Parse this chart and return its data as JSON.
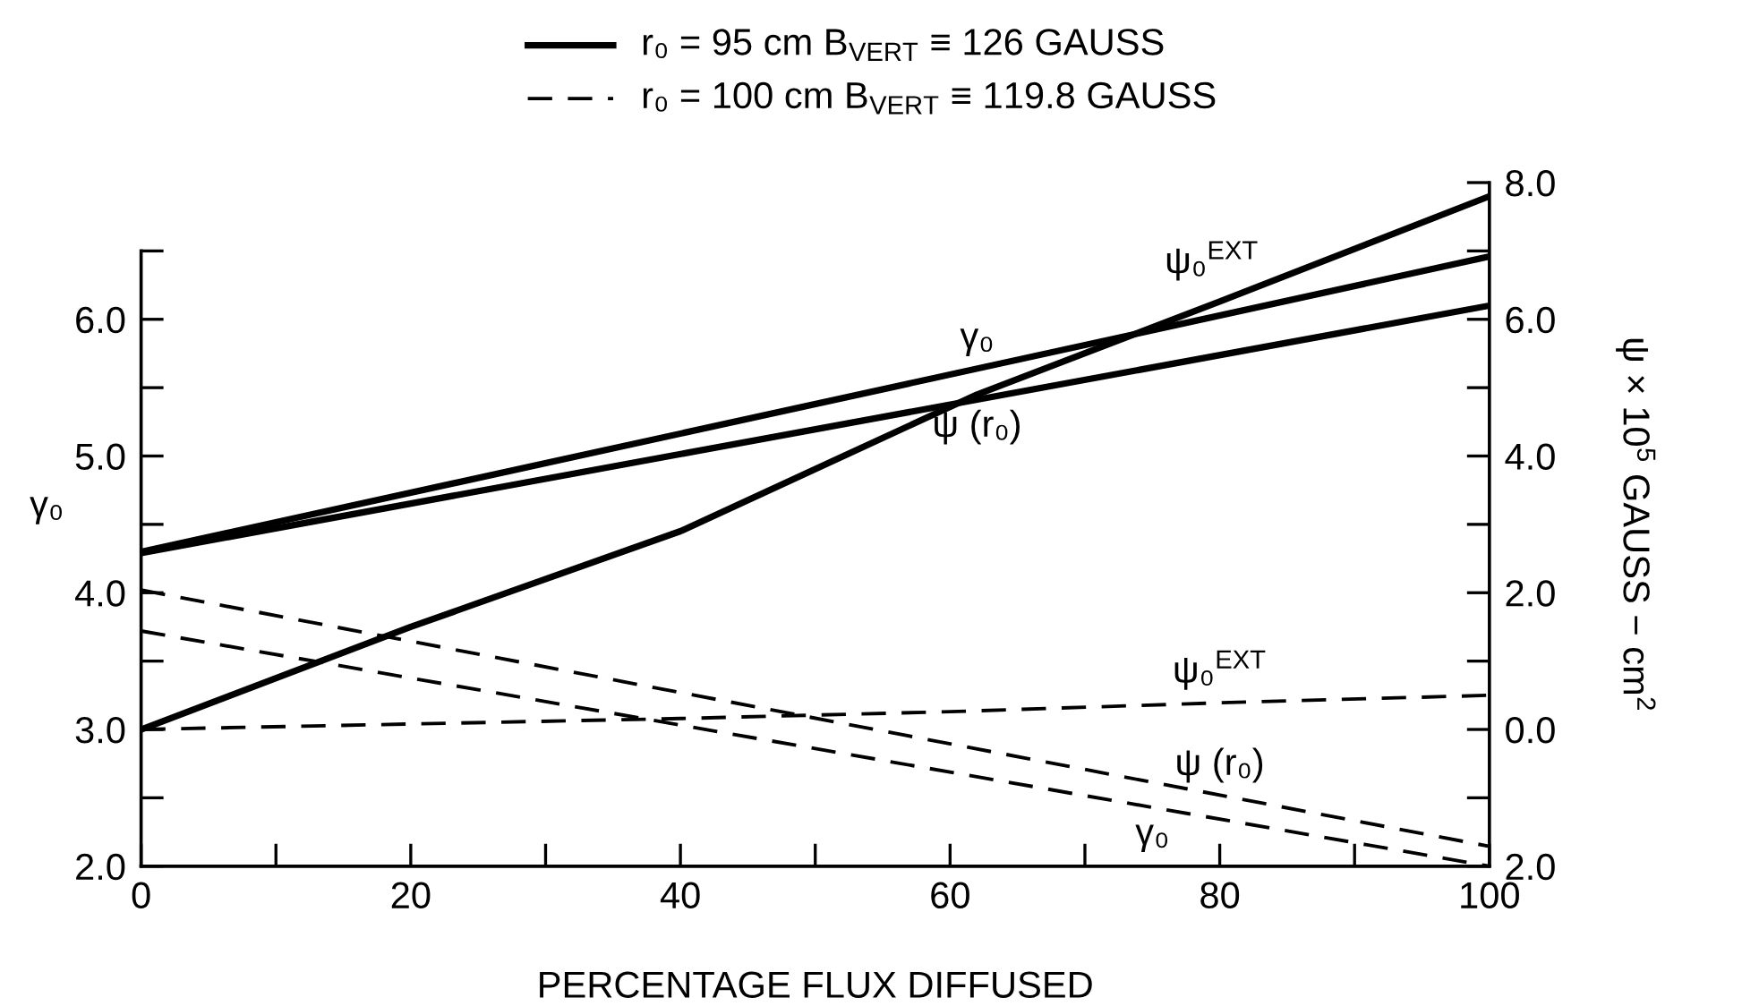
{
  "chart_data": {
    "type": "line",
    "xlabel": "PERCENTAGE FLUX DIFFUSED",
    "ylabel": "γ₀",
    "y2label": "ψ × 10$^{5}$ GAUSS − cm$^{2}$",
    "xlim": [
      0,
      100
    ],
    "xticks": [
      0,
      {
        "value": 10,
        "label": null
      },
      20,
      {
        "value": 30,
        "label": null
      },
      40,
      {
        "value": 50,
        "label": null
      },
      60,
      {
        "value": 70,
        "label": null
      },
      80,
      {
        "value": 90,
        "label": null
      },
      100
    ],
    "ylim": [
      2,
      7
    ],
    "yticks": [
      {
        "value": 2,
        "label": "2.0"
      },
      {
        "value": 2.5,
        "label": null
      },
      {
        "value": 3,
        "label": "3.0"
      },
      {
        "value": 3.5,
        "label": null
      },
      {
        "value": 4,
        "label": "4.0"
      },
      {
        "value": 4.5,
        "label": null
      },
      {
        "value": 5,
        "label": "5.0"
      },
      {
        "value": 5.5,
        "label": null
      },
      {
        "value": 6,
        "label": "6.0"
      },
      {
        "value": 6.5,
        "label": null
      }
    ],
    "y2lim": [
      -2,
      8
    ],
    "y2ticks": [
      {
        "value": -2,
        "label": "2.0"
      },
      {
        "value": -1,
        "label": null
      },
      {
        "value": 0,
        "label": "0.0"
      },
      {
        "value": 1,
        "label": null
      },
      {
        "value": 2,
        "label": "2.0"
      },
      {
        "value": 3,
        "label": null
      },
      {
        "value": 4,
        "label": "4.0"
      },
      {
        "value": 5,
        "label": null
      },
      {
        "value": 6,
        "label": "6.0"
      },
      {
        "value": 7,
        "label": null
      },
      {
        "value": 8,
        "label": "8.0"
      }
    ],
    "grid": false,
    "marker": "none",
    "annotations": [
      "r₀ = 95 cm B$_{VERT}$ ≡ 126 GAUSS",
      "r₀ = 100 cm B$_{VERT}$ ≡ 119.8 GAUSS"
    ],
    "series": [
      {
        "name": "γ₀",
        "color": "#000000",
        "line_style": "solid",
        "x": [
          0,
          100
        ],
        "values": [
          4.3,
          6.46
        ]
      },
      {
        "name": "ψ (r₀)",
        "color": "#000000",
        "line_style": "solid",
        "axis": "y2",
        "x": [
          0,
          100
        ],
        "values": [
          2.58,
          6.2
        ]
      },
      {
        "name": "ψ₀$^{EXT}$",
        "color": "#000000",
        "line_style": "solid",
        "axis": "y2",
        "x": [
          0,
          20,
          40,
          62,
          80,
          100
        ],
        "values": [
          0,
          1.5,
          2.9,
          4.9,
          6.26,
          7.8
        ]
      },
      {
        "name": "ψ₀$^{EXT}$",
        "color": "#000000",
        "line_style": "dashed",
        "axis": "y2",
        "x": [
          0,
          40,
          60,
          80,
          100
        ],
        "values": [
          0,
          0.16,
          0.26,
          0.39,
          0.5
        ]
      },
      {
        "name": "ψ (r₀)",
        "color": "#000000",
        "line_style": "dashed",
        "axis": "y2",
        "x": [
          0,
          100
        ],
        "values": [
          2.04,
          -1.71
        ]
      },
      {
        "name": "γ₀",
        "color": "#000000",
        "line_style": "dashed",
        "x": [
          0,
          100
        ],
        "values": [
          3.72,
          2.0
        ]
      }
    ]
  }
}
